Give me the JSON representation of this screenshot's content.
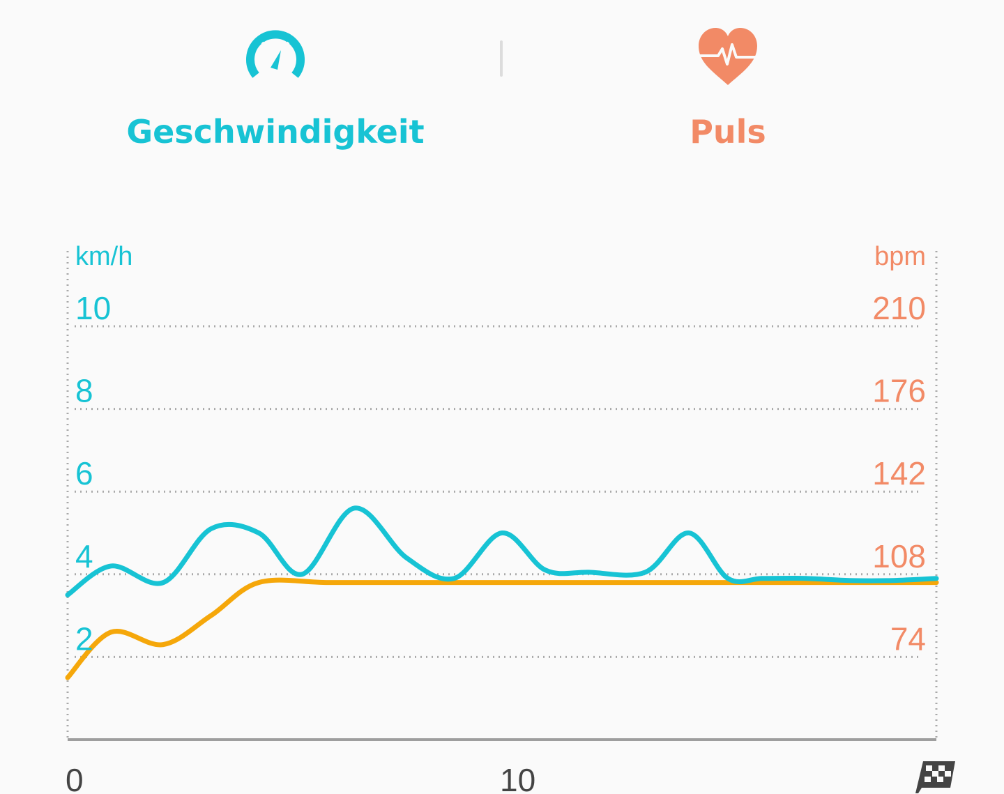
{
  "tabs": {
    "speed": {
      "label": "Geschwindigkeit",
      "color": "#17c3d4",
      "icon": "speedometer-icon"
    },
    "pulse": {
      "label": "Puls",
      "color": "#f28a66",
      "icon": "heart-pulse-icon"
    }
  },
  "chart_data": {
    "type": "line",
    "left_axis": {
      "unit": "km/h",
      "ticks": [
        "2",
        "4",
        "6",
        "8",
        "10"
      ],
      "ylim": [
        0,
        10
      ],
      "color": "#17c3d4"
    },
    "right_axis": {
      "unit": "bpm",
      "ticks": [
        "74",
        "108",
        "142",
        "176",
        "210"
      ],
      "color": "#f28a66"
    },
    "x_axis": {
      "ticks": [
        "0",
        "10"
      ],
      "xlim": [
        0,
        20
      ],
      "end_icon": "checkered-flag-icon"
    },
    "grid": "dotted",
    "series": [
      {
        "color": "#17c3d4",
        "points": [
          [
            0,
            3.5
          ],
          [
            1,
            4.2
          ],
          [
            2.2,
            3.8
          ],
          [
            3.3,
            5.1
          ],
          [
            4.4,
            5
          ],
          [
            5.4,
            4
          ],
          [
            6.6,
            5.6
          ],
          [
            7.8,
            4.4
          ],
          [
            8.9,
            3.9
          ],
          [
            10,
            5
          ],
          [
            11,
            4.1
          ],
          [
            12,
            4.05
          ],
          [
            13.3,
            4.05
          ],
          [
            14.3,
            5
          ],
          [
            15.2,
            3.9
          ],
          [
            16,
            3.9
          ],
          [
            17,
            3.9
          ],
          [
            18,
            3.85
          ],
          [
            19,
            3.85
          ],
          [
            20,
            3.9
          ]
        ]
      },
      {
        "color": "#f5a70a",
        "points": [
          [
            0,
            1.5
          ],
          [
            1,
            2.6
          ],
          [
            2.2,
            2.3
          ],
          [
            3.3,
            3
          ],
          [
            4.4,
            3.8
          ],
          [
            6,
            3.8
          ],
          [
            8,
            3.8
          ],
          [
            10,
            3.8
          ],
          [
            12,
            3.8
          ],
          [
            14,
            3.8
          ],
          [
            16,
            3.8
          ],
          [
            18,
            3.8
          ],
          [
            20,
            3.8
          ]
        ]
      }
    ]
  }
}
